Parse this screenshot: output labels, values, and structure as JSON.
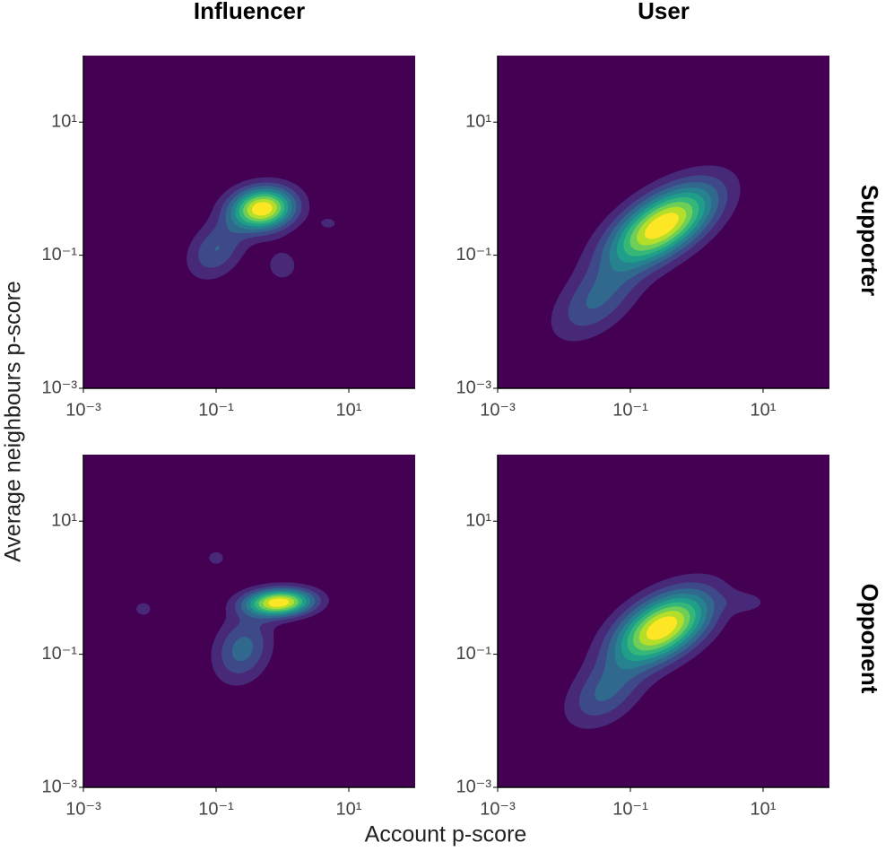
{
  "figure": {
    "columns": [
      "Influencer",
      "User"
    ],
    "rows": [
      "Supporter",
      "Opponent"
    ],
    "xlabel": "Account p-score",
    "ylabel": "Average neighbours p-score",
    "colors": [
      "#440154",
      "#482878",
      "#3e4989",
      "#31688e",
      "#26828e",
      "#1f9e89",
      "#35b779",
      "#6ece58",
      "#b5de2b",
      "#fde725"
    ]
  },
  "chart_data": [
    {
      "type": "kde",
      "log": true,
      "xlim": [
        0.001,
        100
      ],
      "ylim": [
        0.001,
        100
      ],
      "xticks": [
        {
          "value": 0.001,
          "label": "10⁻³"
        },
        {
          "value": 0.1,
          "label": "10⁻¹"
        },
        {
          "value": 10,
          "label": "10¹"
        }
      ],
      "yticks": [
        {
          "value": 0.001,
          "label": "10⁻³"
        },
        {
          "value": 0.1,
          "label": "10⁻¹"
        },
        {
          "value": 10,
          "label": "10¹"
        }
      ],
      "components": [
        {
          "x": 0.5,
          "y": 0.5,
          "sx": 0.33,
          "sy": 0.22,
          "rho": 0.1,
          "w": 1
        },
        {
          "x": 0.1,
          "y": 0.12,
          "sx": 0.3,
          "sy": 0.3,
          "rho": 0.3,
          "w": 0.3
        },
        {
          "x": 1,
          "y": 0.07,
          "sx": 0.2,
          "sy": 0.2,
          "rho": 0,
          "w": 0.15
        },
        {
          "x": 5,
          "y": 0.3,
          "sx": 0.15,
          "sy": 0.1,
          "rho": 0,
          "w": 0.12
        }
      ]
    },
    {
      "type": "kde",
      "log": true,
      "xlim": [
        0.001,
        100
      ],
      "ylim": [
        0.001,
        100
      ],
      "xticks": [
        {
          "value": 0.001,
          "label": "10⁻³"
        },
        {
          "value": 0.1,
          "label": "10⁻¹"
        },
        {
          "value": 10,
          "label": "10¹"
        }
      ],
      "yticks": [
        {
          "value": 0.001,
          "label": "10⁻³"
        },
        {
          "value": 0.1,
          "label": "10⁻¹"
        },
        {
          "value": 10,
          "label": "10¹"
        }
      ],
      "components": [
        {
          "x": 0.3,
          "y": 0.28,
          "sx": 0.55,
          "sy": 0.42,
          "rho": 0.6,
          "w": 1
        },
        {
          "x": 0.03,
          "y": 0.02,
          "sx": 0.45,
          "sy": 0.4,
          "rho": 0.5,
          "w": 0.3
        }
      ]
    },
    {
      "type": "kde",
      "log": true,
      "xlim": [
        0.001,
        100
      ],
      "ylim": [
        0.001,
        100
      ],
      "xticks": [
        {
          "value": 0.001,
          "label": "10⁻³"
        },
        {
          "value": 0.1,
          "label": "10⁻¹"
        },
        {
          "value": 10,
          "label": "10¹"
        }
      ],
      "yticks": [
        {
          "value": 0.001,
          "label": "10⁻³"
        },
        {
          "value": 0.1,
          "label": "10⁻¹"
        },
        {
          "value": 10,
          "label": "10¹"
        }
      ],
      "components": [
        {
          "x": 0.9,
          "y": 0.6,
          "sx": 0.35,
          "sy": 0.14,
          "rho": 0.1,
          "w": 1
        },
        {
          "x": 0.25,
          "y": 0.12,
          "sx": 0.3,
          "sy": 0.35,
          "rho": 0.2,
          "w": 0.35
        },
        {
          "x": 0.008,
          "y": 0.48,
          "sx": 0.12,
          "sy": 0.1,
          "rho": 0,
          "w": 0.15
        },
        {
          "x": 0.1,
          "y": 2.8,
          "sx": 0.12,
          "sy": 0.1,
          "rho": 0,
          "w": 0.15
        }
      ]
    },
    {
      "type": "kde",
      "log": true,
      "xlim": [
        0.001,
        100
      ],
      "ylim": [
        0.001,
        100
      ],
      "xticks": [
        {
          "value": 0.001,
          "label": "10⁻³"
        },
        {
          "value": 0.1,
          "label": "10⁻¹"
        },
        {
          "value": 10,
          "label": "10¹"
        }
      ],
      "yticks": [
        {
          "value": 0.001,
          "label": "10⁻³"
        },
        {
          "value": 0.1,
          "label": "10⁻¹"
        },
        {
          "value": 10,
          "label": "10¹"
        }
      ],
      "components": [
        {
          "x": 0.3,
          "y": 0.25,
          "sx": 0.5,
          "sy": 0.38,
          "rho": 0.5,
          "w": 1
        },
        {
          "x": 0.04,
          "y": 0.025,
          "sx": 0.4,
          "sy": 0.35,
          "rho": 0.4,
          "w": 0.3
        },
        {
          "x": 6,
          "y": 0.6,
          "sx": 0.25,
          "sy": 0.12,
          "rho": 0,
          "w": 0.12
        }
      ]
    }
  ]
}
